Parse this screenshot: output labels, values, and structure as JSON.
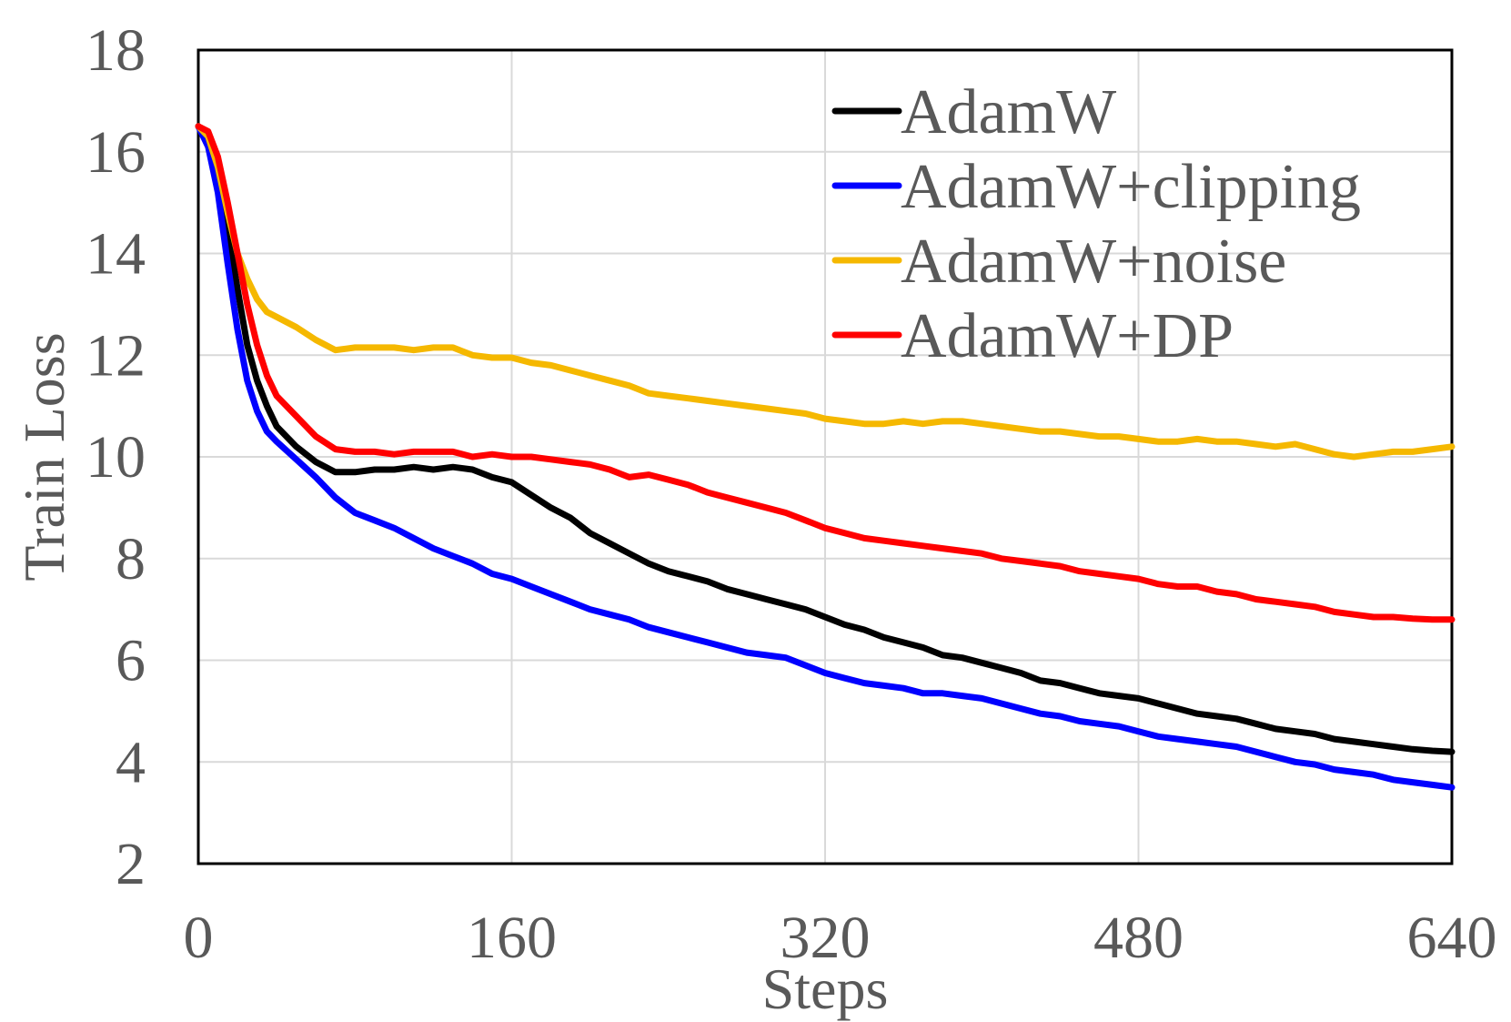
{
  "chart_data": {
    "type": "line",
    "title": "",
    "xlabel": "Steps",
    "ylabel": "Train Loss",
    "xlim": [
      0,
      640
    ],
    "ylim": [
      2,
      18
    ],
    "xticks": [
      0,
      160,
      320,
      480,
      640
    ],
    "yticks": [
      2,
      4,
      6,
      8,
      10,
      12,
      14,
      16,
      18
    ],
    "xtick_labels": [
      "0",
      "160",
      "320",
      "480",
      "640"
    ],
    "ytick_labels": [
      "2",
      "4",
      "6",
      "8",
      "10",
      "12",
      "14",
      "16",
      "18"
    ],
    "grid": true,
    "legend_position": "top-right",
    "x": [
      0,
      5,
      10,
      15,
      20,
      25,
      30,
      35,
      40,
      50,
      60,
      70,
      80,
      90,
      100,
      110,
      120,
      130,
      140,
      150,
      160,
      170,
      180,
      190,
      200,
      210,
      220,
      230,
      240,
      250,
      260,
      270,
      280,
      290,
      300,
      310,
      320,
      330,
      340,
      350,
      360,
      370,
      380,
      390,
      400,
      410,
      420,
      430,
      440,
      450,
      460,
      470,
      480,
      490,
      500,
      510,
      520,
      530,
      540,
      550,
      560,
      570,
      580,
      590,
      600,
      610,
      620,
      630,
      640
    ],
    "series": [
      {
        "name": "AdamW",
        "color": "#000000",
        "values": [
          16.5,
          16.3,
          15.6,
          14.5,
          13.3,
          12.2,
          11.5,
          11.0,
          10.6,
          10.2,
          9.9,
          9.7,
          9.7,
          9.75,
          9.75,
          9.8,
          9.75,
          9.8,
          9.75,
          9.6,
          9.5,
          9.25,
          9.0,
          8.8,
          8.5,
          8.3,
          8.1,
          7.9,
          7.75,
          7.65,
          7.55,
          7.4,
          7.3,
          7.2,
          7.1,
          7.0,
          6.85,
          6.7,
          6.6,
          6.45,
          6.35,
          6.25,
          6.1,
          6.05,
          5.95,
          5.85,
          5.75,
          5.6,
          5.55,
          5.45,
          5.35,
          5.3,
          5.25,
          5.15,
          5.05,
          4.95,
          4.9,
          4.85,
          4.75,
          4.65,
          4.6,
          4.55,
          4.45,
          4.4,
          4.35,
          4.3,
          4.25,
          4.22,
          4.2
        ]
      },
      {
        "name": "AdamW+clipping",
        "color": "#0000FF",
        "values": [
          16.5,
          16.1,
          15.2,
          13.8,
          12.5,
          11.5,
          10.9,
          10.5,
          10.3,
          9.95,
          9.6,
          9.2,
          8.9,
          8.75,
          8.6,
          8.4,
          8.2,
          8.05,
          7.9,
          7.7,
          7.6,
          7.45,
          7.3,
          7.15,
          7.0,
          6.9,
          6.8,
          6.65,
          6.55,
          6.45,
          6.35,
          6.25,
          6.15,
          6.1,
          6.05,
          5.9,
          5.75,
          5.65,
          5.55,
          5.5,
          5.45,
          5.35,
          5.35,
          5.3,
          5.25,
          5.15,
          5.05,
          4.95,
          4.9,
          4.8,
          4.75,
          4.7,
          4.6,
          4.5,
          4.45,
          4.4,
          4.35,
          4.3,
          4.2,
          4.1,
          4.0,
          3.95,
          3.85,
          3.8,
          3.75,
          3.65,
          3.6,
          3.55,
          3.5
        ]
      },
      {
        "name": "AdamW+noise",
        "color": "#F5B800",
        "values": [
          16.5,
          16.3,
          15.7,
          14.8,
          14.0,
          13.5,
          13.1,
          12.85,
          12.75,
          12.55,
          12.3,
          12.1,
          12.15,
          12.15,
          12.15,
          12.1,
          12.15,
          12.15,
          12.0,
          11.95,
          11.95,
          11.85,
          11.8,
          11.7,
          11.6,
          11.5,
          11.4,
          11.25,
          11.2,
          11.15,
          11.1,
          11.05,
          11.0,
          10.95,
          10.9,
          10.85,
          10.75,
          10.7,
          10.65,
          10.65,
          10.7,
          10.65,
          10.7,
          10.7,
          10.65,
          10.6,
          10.55,
          10.5,
          10.5,
          10.45,
          10.4,
          10.4,
          10.35,
          10.3,
          10.3,
          10.35,
          10.3,
          10.3,
          10.25,
          10.2,
          10.25,
          10.15,
          10.05,
          10.0,
          10.05,
          10.1,
          10.1,
          10.15,
          10.2
        ]
      },
      {
        "name": "AdamW+DP",
        "color": "#FF0000",
        "values": [
          16.5,
          16.4,
          15.9,
          15.0,
          14.0,
          13.0,
          12.2,
          11.6,
          11.2,
          10.8,
          10.4,
          10.15,
          10.1,
          10.1,
          10.05,
          10.1,
          10.1,
          10.1,
          10.0,
          10.05,
          10.0,
          10.0,
          9.95,
          9.9,
          9.85,
          9.75,
          9.6,
          9.65,
          9.55,
          9.45,
          9.3,
          9.2,
          9.1,
          9.0,
          8.9,
          8.75,
          8.6,
          8.5,
          8.4,
          8.35,
          8.3,
          8.25,
          8.2,
          8.15,
          8.1,
          8.0,
          7.95,
          7.9,
          7.85,
          7.75,
          7.7,
          7.65,
          7.6,
          7.5,
          7.45,
          7.45,
          7.35,
          7.3,
          7.2,
          7.15,
          7.1,
          7.05,
          6.95,
          6.9,
          6.85,
          6.85,
          6.82,
          6.8,
          6.8
        ]
      }
    ]
  }
}
